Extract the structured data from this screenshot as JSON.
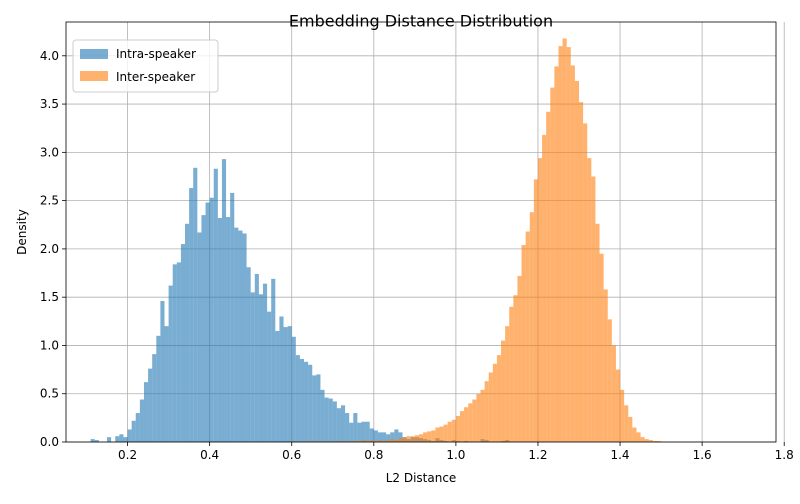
{
  "chart_data": {
    "type": "histogram",
    "title": "Embedding Distance Distribution",
    "xlabel": "L2 Distance",
    "ylabel": "Density",
    "xlim": [
      0.05,
      1.78
    ],
    "ylim": [
      0,
      4.35
    ],
    "xticks": [
      0.2,
      0.4,
      0.6,
      0.8,
      1.0,
      1.2,
      1.4,
      1.6,
      1.8
    ],
    "xtick_labels": [
      "0.2",
      "0.4",
      "0.6",
      "0.8",
      "1.0",
      "1.2",
      "1.4",
      "1.6",
      "1.8"
    ],
    "yticks": [
      0,
      0.5,
      1.0,
      1.5,
      2.0,
      2.5,
      3.0,
      3.5,
      4.0
    ],
    "ytick_labels": [
      "0.0",
      "0.5",
      "1.0",
      "1.5",
      "2.0",
      "2.5",
      "3.0",
      "3.5",
      "4.0"
    ],
    "grid": true,
    "legend_position": "top-left",
    "series": [
      {
        "name": "Intra-speaker",
        "color": "#1f77b4",
        "alpha": 0.6,
        "bins": {
          "start": 0.11,
          "width": 0.01,
          "values": [
            0.03,
            0.02,
            0.0,
            0.0,
            0.05,
            0.0,
            0.06,
            0.08,
            0.05,
            0.13,
            0.22,
            0.3,
            0.44,
            0.62,
            0.76,
            0.91,
            1.1,
            1.46,
            1.2,
            1.62,
            1.84,
            1.86,
            2.05,
            2.26,
            2.63,
            2.84,
            2.17,
            2.35,
            2.48,
            2.53,
            2.83,
            2.32,
            2.93,
            2.33,
            2.58,
            2.22,
            2.19,
            2.16,
            1.81,
            1.55,
            1.74,
            1.53,
            1.64,
            1.35,
            1.69,
            1.15,
            1.3,
            1.19,
            1.2,
            1.09,
            0.9,
            0.86,
            0.83,
            0.8,
            0.69,
            0.7,
            0.54,
            0.46,
            0.45,
            0.42,
            0.35,
            0.38,
            0.3,
            0.2,
            0.3,
            0.2,
            0.21,
            0.21,
            0.14,
            0.12,
            0.1,
            0.1,
            0.08,
            0.1,
            0.13,
            0.1,
            0.05,
            0.03,
            0.05,
            0.05,
            0.04,
            0.03,
            0.02,
            0.01,
            0.04,
            0.02,
            0.01,
            0.0,
            0.02,
            0.01,
            0.0,
            0.01,
            0.0,
            0.0,
            0.0,
            0.03,
            0.02,
            0.0,
            0.0,
            0.0,
            0.01,
            0.02,
            0.0,
            0.0,
            0.0,
            0.0,
            0.0,
            0.0,
            0.0,
            0.0,
            0.0,
            0.0,
            0.0,
            0.0,
            0.0
          ]
        }
      },
      {
        "name": "Inter-speaker",
        "color": "#ff7f0e",
        "alpha": 0.6,
        "bins": {
          "start": 0.6,
          "width": 0.01,
          "values": [
            0.01,
            0.0,
            0.0,
            0.01,
            0.0,
            0.01,
            0.0,
            0.01,
            0.0,
            0.01,
            0.0,
            0.01,
            0.01,
            0.0,
            0.01,
            0.01,
            0.01,
            0.02,
            0.01,
            0.02,
            0.01,
            0.02,
            0.01,
            0.02,
            0.03,
            0.02,
            0.04,
            0.05,
            0.06,
            0.06,
            0.07,
            0.08,
            0.1,
            0.11,
            0.12,
            0.15,
            0.16,
            0.18,
            0.21,
            0.23,
            0.27,
            0.32,
            0.36,
            0.4,
            0.44,
            0.5,
            0.54,
            0.63,
            0.72,
            0.81,
            0.9,
            1.05,
            1.2,
            1.4,
            1.52,
            1.72,
            2.04,
            2.18,
            2.38,
            2.72,
            2.94,
            3.18,
            3.42,
            3.67,
            3.89,
            4.1,
            4.18,
            4.09,
            3.9,
            3.74,
            3.52,
            3.3,
            2.94,
            2.75,
            2.26,
            1.95,
            1.58,
            1.27,
            1.0,
            0.75,
            0.54,
            0.38,
            0.26,
            0.15,
            0.1,
            0.05,
            0.03,
            0.02,
            0.01,
            0.01
          ]
        }
      }
    ]
  }
}
